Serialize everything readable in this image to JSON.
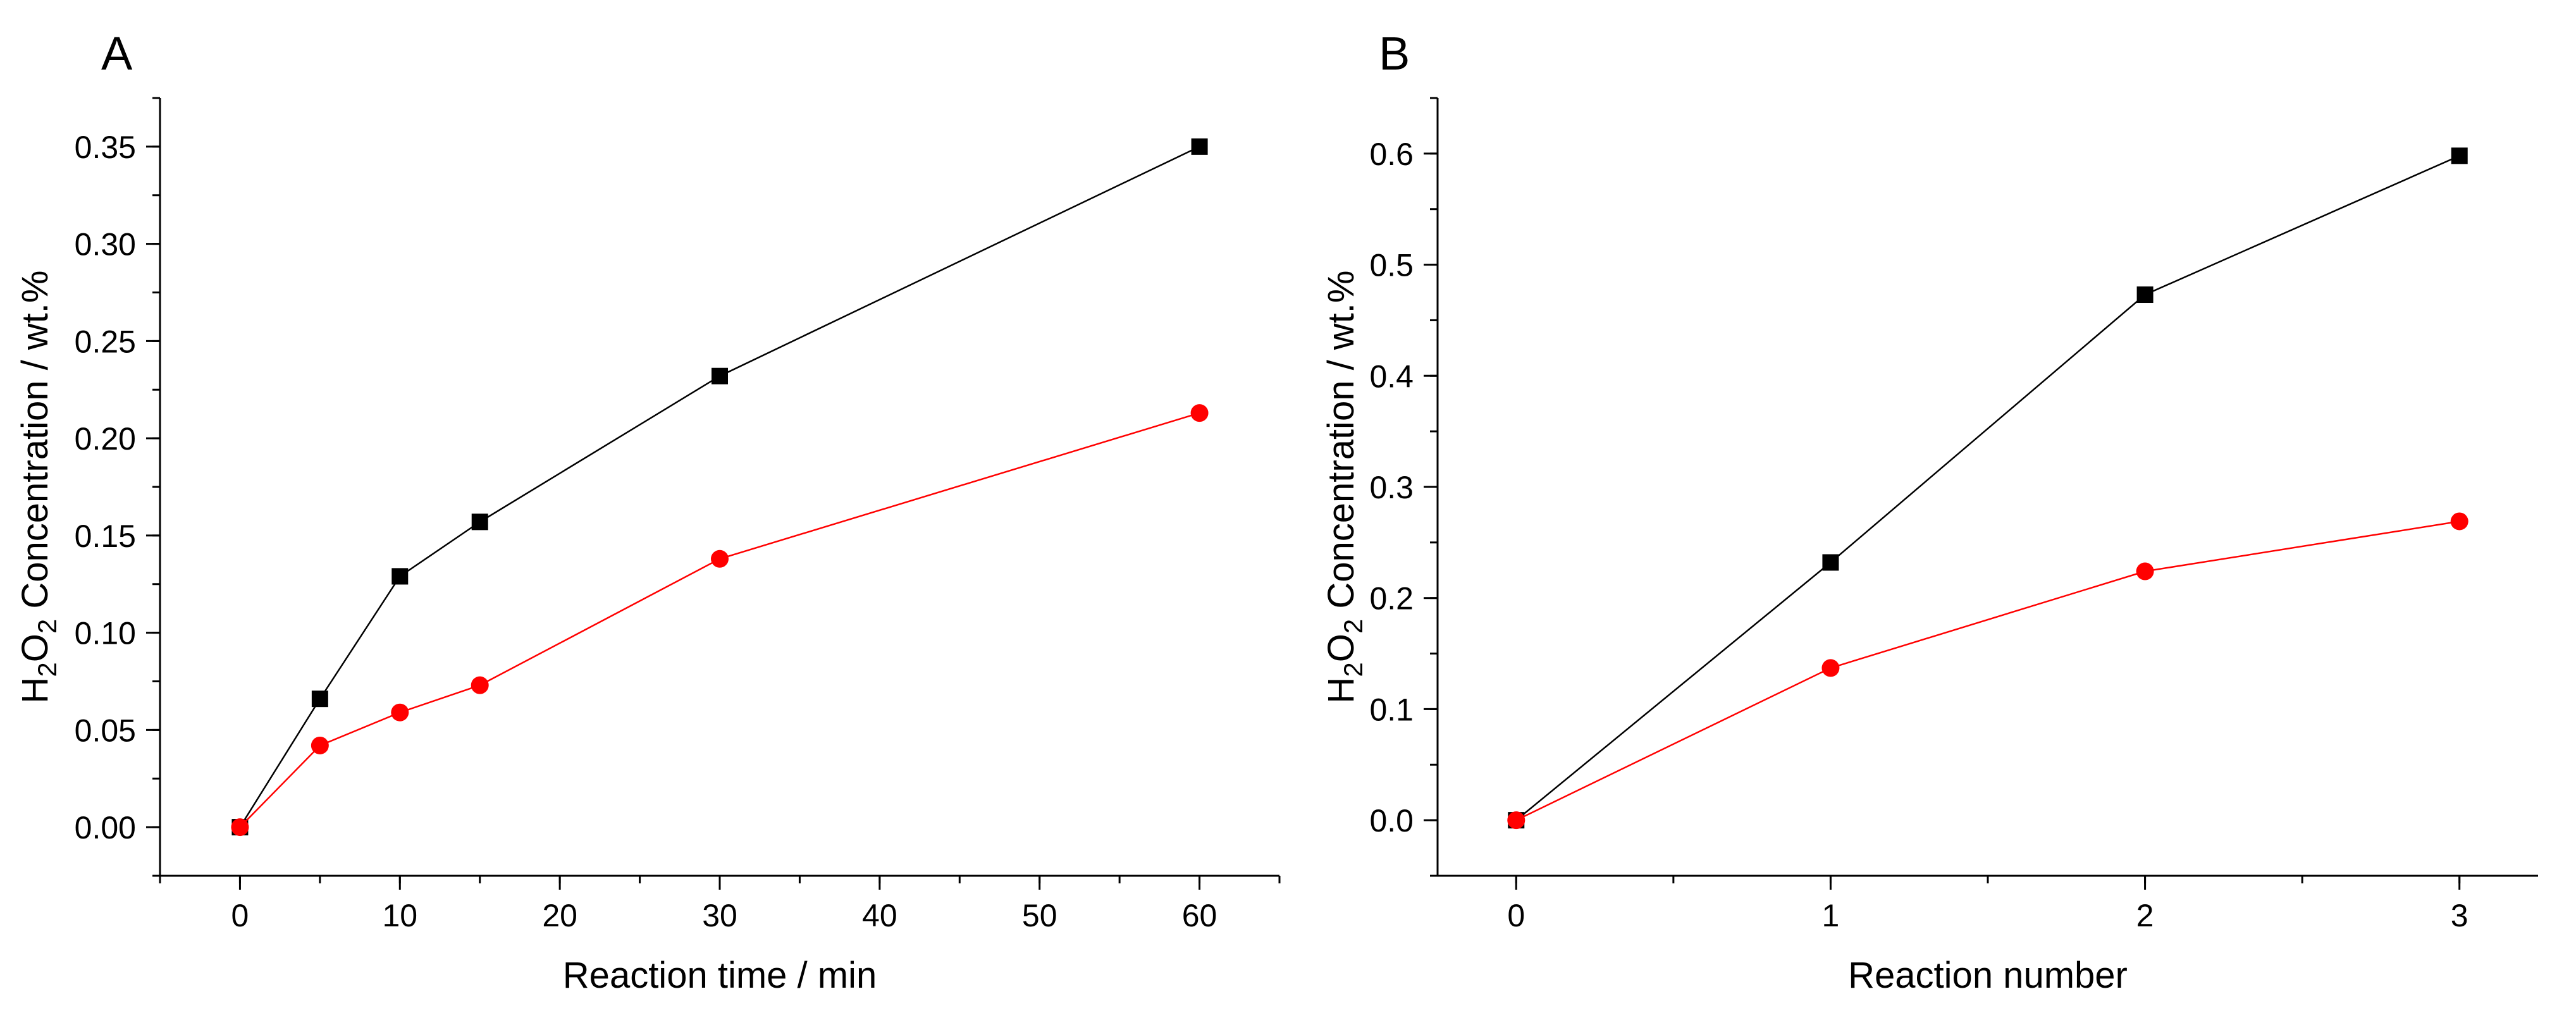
{
  "chart_data": [
    {
      "type": "line",
      "panel_label": "A",
      "title": "",
      "xlabel": "Reaction time / min",
      "ylabel": {
        "pre": "H",
        "sub1": "2",
        "mid": "O",
        "sub2": "2",
        "post": " Concentration / wt.%"
      },
      "xlim": [
        -5,
        65
      ],
      "ylim": [
        -0.025,
        0.375
      ],
      "x_ticks": [
        0,
        10,
        20,
        30,
        40,
        50,
        60
      ],
      "x_tick_labels": [
        "0",
        "10",
        "20",
        "30",
        "40",
        "50",
        "60"
      ],
      "y_ticks": [
        0,
        0.05,
        0.1,
        0.15,
        0.2,
        0.25,
        0.3,
        0.35
      ],
      "y_tick_labels": [
        "0.00",
        "0.05",
        "0.10",
        "0.15",
        "0.20",
        "0.25",
        "0.30",
        "0.35"
      ],
      "x_minor_step": 5,
      "y_minor_step": 0.025,
      "series": [
        {
          "name": "black-squares",
          "marker": "square",
          "color": "#000000",
          "x": [
            0,
            5,
            10,
            15,
            30,
            60
          ],
          "values": [
            0.0,
            0.066,
            0.129,
            0.157,
            0.232,
            0.35
          ]
        },
        {
          "name": "red-circles",
          "marker": "circle",
          "color": "#ff0000",
          "x": [
            0,
            5,
            10,
            15,
            30,
            60
          ],
          "values": [
            0.0,
            0.042,
            0.059,
            0.073,
            0.138,
            0.213
          ]
        }
      ]
    },
    {
      "type": "line",
      "panel_label": "B",
      "title": "",
      "xlabel": "Reaction number",
      "ylabel": {
        "pre": "H",
        "sub1": "2",
        "mid": "O",
        "sub2": "2",
        "post": " Concentration / wt.%"
      },
      "xlim": [
        -0.25,
        3.25
      ],
      "ylim": [
        -0.05,
        0.65
      ],
      "x_ticks": [
        0,
        1,
        2,
        3
      ],
      "x_tick_labels": [
        "0",
        "1",
        "2",
        "3"
      ],
      "y_ticks": [
        0,
        0.1,
        0.2,
        0.3,
        0.4,
        0.5,
        0.6
      ],
      "y_tick_labels": [
        "0.0",
        "0.1",
        "0.2",
        "0.3",
        "0.4",
        "0.5",
        "0.6"
      ],
      "x_minor_step": 0.5,
      "y_minor_step": 0.05,
      "series": [
        {
          "name": "black-squares",
          "marker": "square",
          "color": "#000000",
          "x": [
            0,
            1,
            2,
            3
          ],
          "values": [
            0.0,
            0.232,
            0.473,
            0.598
          ]
        },
        {
          "name": "red-circles",
          "marker": "circle",
          "color": "#ff0000",
          "x": [
            0,
            1,
            2,
            3
          ],
          "values": [
            0.0,
            0.137,
            0.224,
            0.269
          ]
        }
      ]
    }
  ]
}
